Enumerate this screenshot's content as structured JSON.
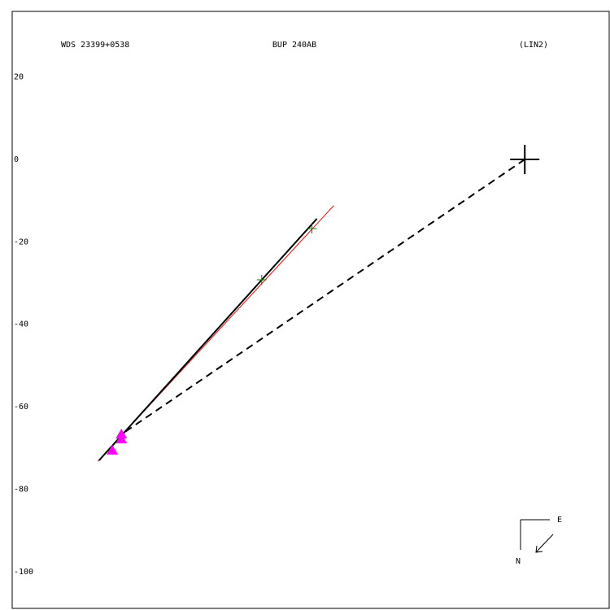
{
  "chart_data": {
    "type": "scatter",
    "left_label": "WDS 23399+0538",
    "title": "BUP 240AB",
    "right_label": "(LIN2)",
    "xlim": [
      -124.5,
      20.5
    ],
    "ylim": [
      -108.9,
      35.9
    ],
    "yticks": [
      20,
      0,
      -20,
      -40,
      -60,
      -80,
      -100
    ],
    "grid": false,
    "series": [
      {
        "color": "#ff0000",
        "style": "line",
        "x": [
          -103.7,
          -46.4
        ],
        "values": [
          -73.2,
          -11.2
        ]
      },
      {
        "color": "#000000",
        "style": "line",
        "x": [
          -103.4,
          -50.5
        ],
        "values": [
          -73.0,
          -14.4
        ]
      },
      {
        "color": "#000000",
        "style": "dashed",
        "x": [
          0,
          -97.4
        ],
        "values": [
          0,
          -66.3
        ]
      },
      {
        "color": "#008000",
        "marker": "plus",
        "x": [
          -63.9,
          -51.7
        ],
        "values": [
          -29.2,
          -16.8
        ]
      },
      {
        "color": "#ff00ff",
        "marker": "triangle",
        "x": [
          -98.0,
          -98.0,
          -100.2
        ],
        "values": [
          -66.7,
          -67.9,
          -70.6
        ]
      },
      {
        "color": "#000000",
        "marker": "bigplus",
        "x": [
          0
        ],
        "values": [
          0
        ]
      }
    ],
    "compass": {
      "east": "E",
      "north": "N"
    }
  }
}
